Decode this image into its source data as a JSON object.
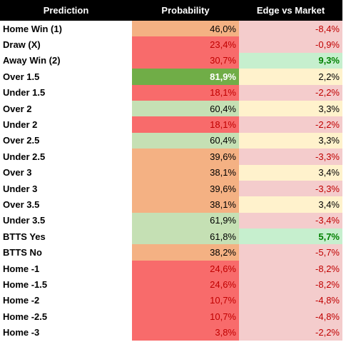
{
  "table": {
    "headers": [
      "Prediction",
      "Probability",
      "Edge vs Market"
    ],
    "rows": [
      [
        "Home Win (1)",
        "46,0%",
        "-8,4%"
      ],
      [
        "Draw (X)",
        "23,4%",
        "-0,9%"
      ],
      [
        "Away Win (2)",
        "30,7%",
        "9,3%"
      ],
      [
        "Over 1.5",
        "81,9%",
        "2,2%"
      ],
      [
        "Under 1.5",
        "18,1%",
        "-2,2%"
      ],
      [
        "Over 2",
        "60,4%",
        "3,3%"
      ],
      [
        "Under 2",
        "18,1%",
        "-2,2%"
      ],
      [
        "Over 2.5",
        "60,4%",
        "3,3%"
      ],
      [
        "Under 2.5",
        "39,6%",
        "-3,3%"
      ],
      [
        "Over 3",
        "38,1%",
        "3,4%"
      ],
      [
        "Under 3",
        "39,6%",
        "-3,3%"
      ],
      [
        "Over 3.5",
        "38,1%",
        "3,4%"
      ],
      [
        "Under 3.5",
        "61,9%",
        "-3,4%"
      ],
      [
        "BTTS Yes",
        "61,8%",
        "5,7%"
      ],
      [
        "BTTS No",
        "38,2%",
        "-5,7%"
      ],
      [
        "Home -1",
        "24,6%",
        "-8,2%"
      ],
      [
        "Home -1.5",
        "24,6%",
        "-8,2%"
      ],
      [
        "Home -2",
        "10,7%",
        "-4,8%"
      ],
      [
        "Home -2.5",
        "10,7%",
        "-4,8%"
      ],
      [
        "Home -3",
        "3,8%",
        "-2,2%"
      ]
    ]
  }
}
